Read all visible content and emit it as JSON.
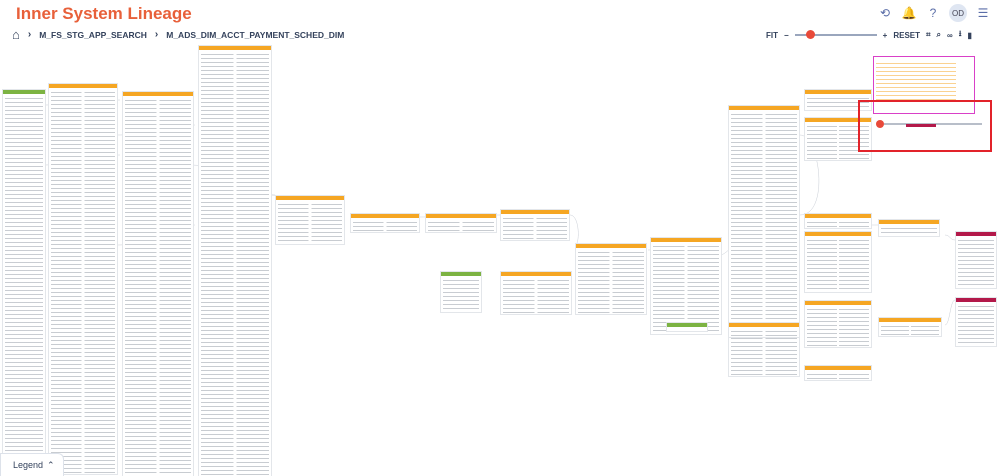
{
  "app": {
    "title": "Inner System Lineage"
  },
  "header_icons": [
    {
      "name": "history-icon",
      "glyph": "⟲"
    },
    {
      "name": "notification-bell-icon",
      "glyph": "🔔"
    },
    {
      "name": "help-icon",
      "glyph": "?"
    },
    {
      "name": "user-avatar",
      "glyph": "OD"
    },
    {
      "name": "menu-list-icon",
      "glyph": "☰"
    }
  ],
  "breadcrumb": {
    "home_icon": "⌂",
    "items": [
      "M_FS_STG_APP_SEARCH",
      "M_ADS_DIM_ACCT_PAYMENT_SCHED_DIM"
    ]
  },
  "toolbar": {
    "fit_label": "FIT",
    "zoom_out_icon": "−",
    "zoom_in_icon": "+",
    "reset_label": "RESET",
    "zoom_fraction": 0.15
  },
  "legend": {
    "label": "Legend",
    "icon": "⌃"
  },
  "colors": {
    "accent": "#e8603a",
    "source": "#f5a623",
    "target": "#7cb342",
    "focus": "#b3194a",
    "highlight": "#e2232a"
  }
}
